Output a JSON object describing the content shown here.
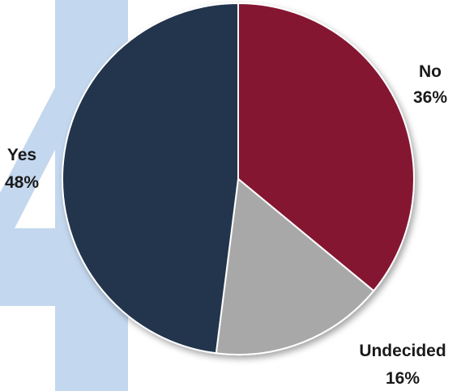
{
  "chart_data": {
    "type": "pie",
    "title": "",
    "slices": [
      {
        "label": "No",
        "value": 36,
        "pct_text": "36%",
        "color": "#851733"
      },
      {
        "label": "Undecided",
        "value": 16,
        "pct_text": "16%",
        "color": "#a8a8a8"
      },
      {
        "label": "Yes",
        "value": 48,
        "pct_text": "48%",
        "color": "#22344d"
      }
    ],
    "start_angle_deg": 0,
    "direction": "clockwise",
    "background_glyph": "4",
    "background_glyph_color": "#c3d7ee",
    "slice_border_color": "#ffffff",
    "legend": "none"
  }
}
